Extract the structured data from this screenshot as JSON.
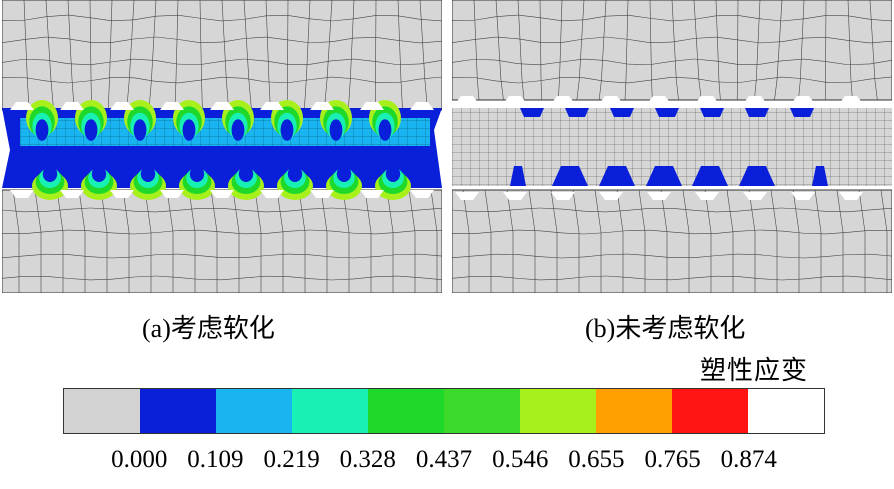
{
  "captions": {
    "a": "(a)考虑软化",
    "b": "(b)未考虑软化"
  },
  "legend": {
    "title": "塑性应变",
    "ticks": [
      "0.000",
      "0.109",
      "0.219",
      "0.328",
      "0.437",
      "0.546",
      "0.655",
      "0.765",
      "0.874"
    ],
    "colors": [
      "#d2d2d2",
      "#0a1fd9",
      "#19b5f0",
      "#19f0b4",
      "#1fd92a",
      "#3bd92a",
      "#a8f01c",
      "#ffa000",
      "#ff1414",
      "#ffffff"
    ]
  },
  "colors": {
    "mesh_fill": "#d6d6d6",
    "mesh_line": "#333333",
    "strain_low": "#0a1fd9",
    "strain_mid": "#19b5f0",
    "strain_cyan": "#19f0b4",
    "strain_green": "#1fd92a",
    "strain_yellow": "#a8f01c"
  }
}
